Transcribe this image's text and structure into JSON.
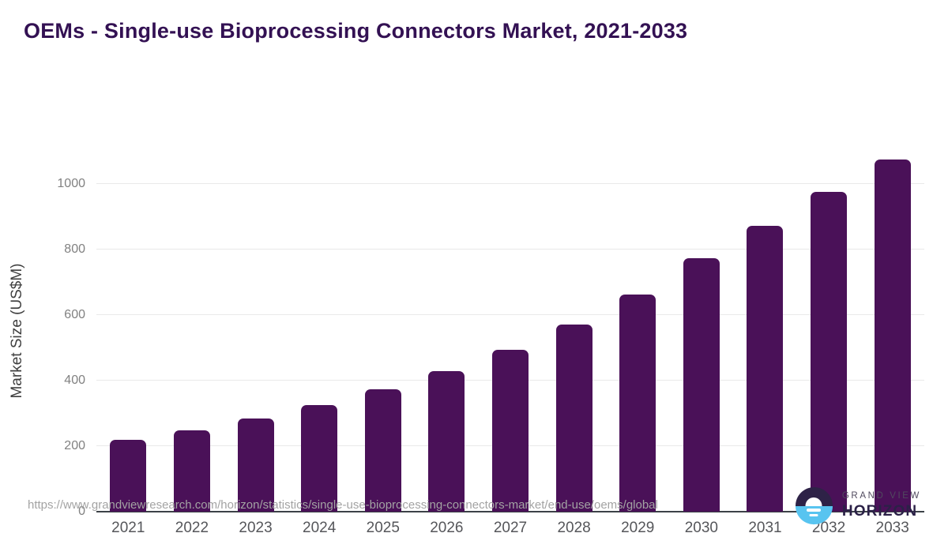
{
  "title": "OEMs - Single-use Bioprocessing Connectors Market, 2021-2033",
  "footer": {
    "source_url": "https://www.grandviewresearch.com/horizon/statistics/single-use-bioprocessing-connectors-market/end-use/oems/global"
  },
  "logo": {
    "line1": "GRAND VIEW",
    "line2": "HORIZON"
  },
  "colors": {
    "title": "#331153",
    "bar": "#4a1158",
    "grid": "#e9e9e9",
    "axis_line": "#3c4247",
    "y_tick": "#818181",
    "x_label": "#55565a",
    "url": "#a3a3a3",
    "logo_dark": "#2e2247",
    "logo_blue": "#58c4f0"
  },
  "chart_data": {
    "type": "bar",
    "title": "OEMs - Single-use Bioprocessing Connectors Market, 2021-2033",
    "categories": [
      "2021",
      "2022",
      "2023",
      "2024",
      "2025",
      "2026",
      "2027",
      "2028",
      "2029",
      "2030",
      "2031",
      "2032",
      "2033"
    ],
    "values": [
      218,
      248,
      283,
      325,
      374,
      429,
      494,
      570,
      663,
      774,
      872,
      976,
      1075
    ],
    "xlabel": "",
    "ylabel": "Market Size (US$M)",
    "ylim": [
      0,
      1103
    ],
    "yticks": [
      0,
      200,
      400,
      600,
      800,
      1000
    ],
    "grid": "horizontal-only",
    "legend": "none",
    "bar_color": "#4a1158"
  }
}
